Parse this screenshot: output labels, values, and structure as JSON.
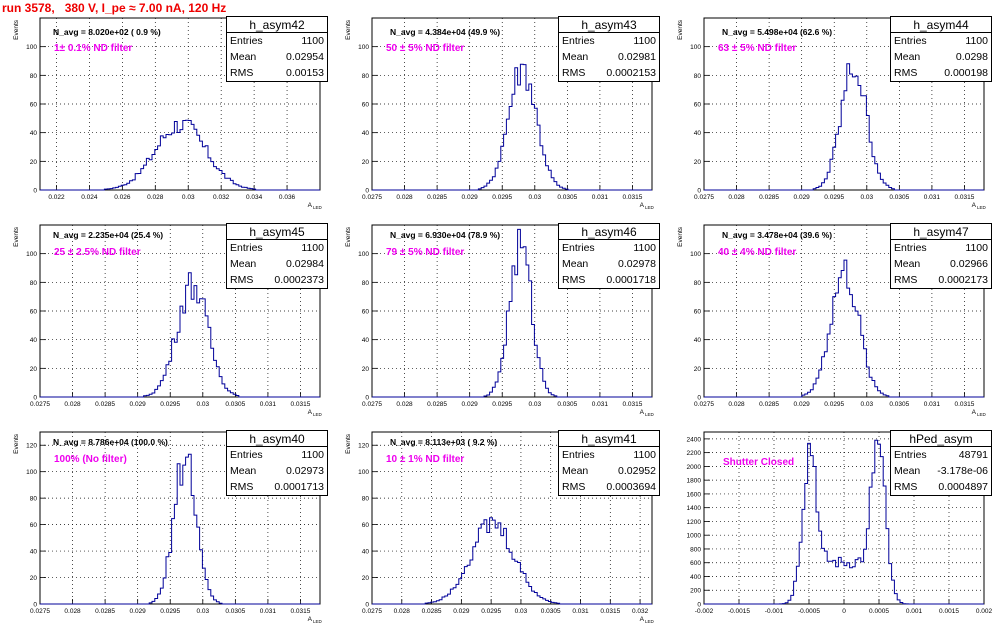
{
  "page": {
    "title": "run 3578,   380 V, I_pe ≈ 7.00 nA, 120 Hz"
  },
  "colors": {
    "title": "#ee0000",
    "histogram": "#000099",
    "annotation": "#ee00ee",
    "grid": "#000000"
  },
  "chart_data": [
    {
      "type": "bar",
      "hist_name": "h_asym42",
      "navg_text": "N_avg = 8.020e+02 ( 0.9 %)",
      "filter_text": "1± 0.1% ND filter",
      "stats": {
        "entries": "1100",
        "mean": "0.02954",
        "rms": "0.00153"
      },
      "stat_labels": [
        "Entries",
        "Mean",
        "RMS"
      ],
      "ylabel": "Events",
      "xlabel": "A",
      "xlabel_sub": "LED",
      "xlim": [
        0.021,
        0.038
      ],
      "ylim": [
        0,
        120
      ],
      "xticks": [
        0.022,
        0.024,
        0.026,
        0.028,
        0.03,
        0.032,
        0.034,
        0.036
      ],
      "xtick_labels": [
        "0.022",
        "0.024",
        "0.026",
        "0.028",
        "0.03",
        "0.032",
        "0.034",
        "0.036"
      ],
      "yticks": [
        0,
        20,
        40,
        60,
        80,
        100
      ],
      "ytick_labels": [
        "0",
        "20",
        "40",
        "60",
        "80",
        "100"
      ],
      "grid": true,
      "shape": {
        "type": "gaussian",
        "mean": 0.02954,
        "sigma": 0.00153,
        "peak": 46
      }
    },
    {
      "type": "bar",
      "hist_name": "h_asym43",
      "navg_text": "N_avg = 4.384e+04 (49.9 %)",
      "filter_text": "50 ± 5% ND filter",
      "stats": {
        "entries": "1100",
        "mean": "0.02981",
        "rms": "0.0002153"
      },
      "stat_labels": [
        "Entries",
        "Mean",
        "RMS"
      ],
      "ylabel": "Events",
      "xlabel": "A",
      "xlabel_sub": "LED",
      "xlim": [
        0.0275,
        0.0318
      ],
      "ylim": [
        0,
        120
      ],
      "xticks": [
        0.0275,
        0.028,
        0.0285,
        0.029,
        0.0295,
        0.03,
        0.0305,
        0.031,
        0.0315
      ],
      "xtick_labels": [
        "0.0275",
        "0.028",
        "0.0285",
        "0.029",
        "0.0295",
        "0.03",
        "0.0305",
        "0.031",
        "0.0315"
      ],
      "yticks": [
        0,
        20,
        40,
        60,
        80,
        100
      ],
      "ytick_labels": [
        "0",
        "20",
        "40",
        "60",
        "80",
        "100"
      ],
      "grid": true,
      "shape": {
        "type": "gaussian",
        "mean": 0.02981,
        "sigma": 0.000215,
        "peak": 86
      }
    },
    {
      "type": "bar",
      "hist_name": "h_asym44",
      "navg_text": "N_avg = 5.498e+04 (62.6 %)",
      "filter_text": "63 ± 5% ND filter",
      "stats": {
        "entries": "1100",
        "mean": "0.0298",
        "rms": "0.000198"
      },
      "stat_labels": [
        "Entries",
        "Mean",
        "RMS"
      ],
      "ylabel": "Events",
      "xlabel": "A",
      "xlabel_sub": "LED",
      "xlim": [
        0.0275,
        0.0318
      ],
      "ylim": [
        0,
        120
      ],
      "xticks": [
        0.0275,
        0.028,
        0.0285,
        0.029,
        0.0295,
        0.03,
        0.0305,
        0.031,
        0.0315
      ],
      "xtick_labels": [
        "0.0275",
        "0.028",
        "0.0285",
        "0.029",
        "0.0295",
        "0.03",
        "0.0305",
        "0.031",
        "0.0315"
      ],
      "yticks": [
        0,
        20,
        40,
        60,
        80,
        100
      ],
      "ytick_labels": [
        "0",
        "20",
        "40",
        "60",
        "80",
        "100"
      ],
      "grid": true,
      "shape": {
        "type": "gaussian",
        "mean": 0.0298,
        "sigma": 0.000198,
        "peak": 86
      }
    },
    {
      "type": "bar",
      "hist_name": "h_asym45",
      "navg_text": "N_avg = 2.235e+04 (25.4 %)",
      "filter_text": "25 ± 2.5% ND filter",
      "stats": {
        "entries": "1100",
        "mean": "0.02984",
        "rms": "0.0002373"
      },
      "stat_labels": [
        "Entries",
        "Mean",
        "RMS"
      ],
      "ylabel": "Events",
      "xlabel": "A",
      "xlabel_sub": "LED",
      "xlim": [
        0.0275,
        0.0318
      ],
      "ylim": [
        0,
        120
      ],
      "xticks": [
        0.0275,
        0.028,
        0.0285,
        0.029,
        0.0295,
        0.03,
        0.0305,
        0.031,
        0.0315
      ],
      "xtick_labels": [
        "0.0275",
        "0.028",
        "0.0285",
        "0.029",
        "0.0295",
        "0.03",
        "0.0305",
        "0.031",
        "0.0315"
      ],
      "yticks": [
        0,
        20,
        40,
        60,
        80,
        100
      ],
      "ytick_labels": [
        "0",
        "20",
        "40",
        "60",
        "80",
        "100"
      ],
      "grid": true,
      "shape": {
        "type": "gaussian",
        "mean": 0.02984,
        "sigma": 0.000237,
        "peak": 79
      }
    },
    {
      "type": "bar",
      "hist_name": "h_asym46",
      "navg_text": "N_avg = 6.930e+04 (78.9 %)",
      "filter_text": "79 ± 5% ND filter",
      "stats": {
        "entries": "1100",
        "mean": "0.02978",
        "rms": "0.0001718"
      },
      "stat_labels": [
        "Entries",
        "Mean",
        "RMS"
      ],
      "ylabel": "Events",
      "xlabel": "A",
      "xlabel_sub": "LED",
      "xlim": [
        0.0275,
        0.0318
      ],
      "ylim": [
        0,
        120
      ],
      "xticks": [
        0.0275,
        0.028,
        0.0285,
        0.029,
        0.0295,
        0.03,
        0.0305,
        0.031,
        0.0315
      ],
      "xtick_labels": [
        "0.0275",
        "0.028",
        "0.0285",
        "0.029",
        "0.0295",
        "0.03",
        "0.0305",
        "0.031",
        "0.0315"
      ],
      "yticks": [
        0,
        20,
        40,
        60,
        80,
        100
      ],
      "ytick_labels": [
        "0",
        "20",
        "40",
        "60",
        "80",
        "100"
      ],
      "grid": true,
      "shape": {
        "type": "gaussian",
        "mean": 0.02978,
        "sigma": 0.000172,
        "peak": 104
      }
    },
    {
      "type": "bar",
      "hist_name": "h_asym47",
      "navg_text": "N_avg = 3.478e+04 (39.6 %)",
      "filter_text": "40 ± 4% ND filter",
      "stats": {
        "entries": "1100",
        "mean": "0.02966",
        "rms": "0.0002173"
      },
      "stat_labels": [
        "Entries",
        "Mean",
        "RMS"
      ],
      "ylabel": "Events",
      "xlabel": "A",
      "xlabel_sub": "LED",
      "xlim": [
        0.0275,
        0.0318
      ],
      "ylim": [
        0,
        120
      ],
      "xticks": [
        0.0275,
        0.028,
        0.0285,
        0.029,
        0.0295,
        0.03,
        0.0305,
        0.031,
        0.0315
      ],
      "xtick_labels": [
        "0.0275",
        "0.028",
        "0.0285",
        "0.029",
        "0.0295",
        "0.03",
        "0.0305",
        "0.031",
        "0.0315"
      ],
      "yticks": [
        0,
        20,
        40,
        60,
        80,
        100
      ],
      "ytick_labels": [
        "0",
        "20",
        "40",
        "60",
        "80",
        "100"
      ],
      "grid": true,
      "shape": {
        "type": "gaussian",
        "mean": 0.02966,
        "sigma": 0.000217,
        "peak": 86
      }
    },
    {
      "type": "bar",
      "hist_name": "h_asym40",
      "navg_text": "N_avg = 8.786e+04 (100.0 %)",
      "filter_text": "100% (No filter)",
      "stats": {
        "entries": "1100",
        "mean": "0.02973",
        "rms": "0.0001713"
      },
      "stat_labels": [
        "Entries",
        "Mean",
        "RMS"
      ],
      "ylabel": "Events",
      "xlabel": "A",
      "xlabel_sub": "LED",
      "xlim": [
        0.0275,
        0.0318
      ],
      "ylim": [
        0,
        130
      ],
      "xticks": [
        0.0275,
        0.028,
        0.0285,
        0.029,
        0.0295,
        0.03,
        0.0305,
        0.031,
        0.0315
      ],
      "xtick_labels": [
        "0.0275",
        "0.028",
        "0.0285",
        "0.029",
        "0.0295",
        "0.03",
        "0.0305",
        "0.031",
        "0.0315"
      ],
      "yticks": [
        0,
        20,
        40,
        60,
        80,
        100,
        120
      ],
      "ytick_labels": [
        "0",
        "20",
        "40",
        "60",
        "80",
        "100",
        "120"
      ],
      "grid": true,
      "shape": {
        "type": "gaussian",
        "mean": 0.02973,
        "sigma": 0.000171,
        "peak": 112
      }
    },
    {
      "type": "bar",
      "hist_name": "h_asym41",
      "navg_text": "N_avg = 8.113e+03 ( 9.2 %)",
      "filter_text": "10 ± 1% ND filter",
      "stats": {
        "entries": "1100",
        "mean": "0.02952",
        "rms": "0.0003694"
      },
      "stat_labels": [
        "Entries",
        "Mean",
        "RMS"
      ],
      "ylabel": "Events",
      "xlabel": "A",
      "xlabel_sub": "LED",
      "xlim": [
        0.0275,
        0.0322
      ],
      "ylim": [
        0,
        130
      ],
      "xticks": [
        0.0275,
        0.028,
        0.0285,
        0.029,
        0.0295,
        0.03,
        0.0305,
        0.031,
        0.0315,
        0.032
      ],
      "xtick_labels": [
        "0.0275",
        "0.028",
        "0.0285",
        "0.029",
        "0.0295",
        "0.03",
        "0.0305",
        "0.031",
        "0.0315",
        "0.032"
      ],
      "yticks": [
        0,
        20,
        40,
        60,
        80,
        100,
        120
      ],
      "ytick_labels": [
        "0",
        "20",
        "40",
        "60",
        "80",
        "100",
        "120"
      ],
      "grid": true,
      "shape": {
        "type": "gaussian",
        "mean": 0.02952,
        "sigma": 0.000369,
        "peak": 60
      }
    },
    {
      "type": "bar",
      "hist_name": "hPed_asym",
      "navg_text": "",
      "filter_text": "Shutter Closed",
      "stats": {
        "entries": "48791",
        "mean": "-3.178e-06",
        "rms": "0.0004897"
      },
      "stat_labels": [
        "Entries",
        "Mean",
        "RMS"
      ],
      "ylabel": "",
      "xlabel": "",
      "xlabel_sub": "",
      "xlim": [
        -0.002,
        0.002
      ],
      "ylim": [
        0,
        2500
      ],
      "xticks": [
        -0.002,
        -0.0015,
        -0.001,
        -0.0005,
        0,
        0.0005,
        0.001,
        0.0015,
        0.002
      ],
      "xtick_labels": [
        "-0.002",
        "-0.0015",
        "-0.001",
        "-0.0005",
        "0",
        "0.0005",
        "0.001",
        "0.0015",
        "0.002"
      ],
      "yticks": [
        0,
        200,
        400,
        600,
        800,
        1000,
        1200,
        1400,
        1600,
        1800,
        2000,
        2200,
        2400
      ],
      "ytick_labels": [
        "0",
        "200",
        "400",
        "600",
        "800",
        "1000",
        "1200",
        "1400",
        "1600",
        "1800",
        "2000",
        "2200",
        "2400"
      ],
      "grid": true,
      "shape": {
        "type": "double-peak",
        "peak1": -0.00048,
        "peak2": 0.00048,
        "sigma": 0.00011,
        "peak": 2300,
        "valley": 600
      }
    }
  ]
}
